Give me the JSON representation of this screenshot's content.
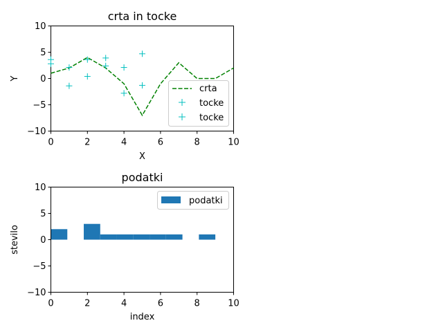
{
  "chart_data": [
    {
      "type": "line",
      "title": "crta in tocke",
      "xlabel": "X",
      "ylabel": "Y",
      "xlim": [
        0,
        10
      ],
      "ylim": [
        -10,
        10
      ],
      "xticks": [
        "0",
        "2",
        "4",
        "6",
        "8",
        "10"
      ],
      "yticks": [
        "10",
        "5",
        "0",
        "−5",
        "−10"
      ],
      "legend_placement": "lower-right",
      "series": [
        {
          "name": "crta",
          "style": "dashed-line",
          "color": "#008000",
          "x": [
            0,
            1,
            2,
            3,
            4,
            5,
            6,
            7,
            8,
            9,
            10
          ],
          "y": [
            1,
            2,
            4,
            2,
            -1,
            -7,
            -1,
            3,
            0,
            0,
            2
          ]
        },
        {
          "name": "tocke",
          "style": "plus-marker",
          "color": "#00bfbf",
          "x": [
            0,
            1,
            2,
            3,
            4,
            5
          ],
          "y": [
            3.6,
            2.1,
            3.6,
            3.9,
            2.1,
            4.7
          ]
        },
        {
          "name": "tocke",
          "style": "plus-marker",
          "color": "#00bfbf",
          "x": [
            0,
            1,
            2,
            3,
            4,
            5
          ],
          "y": [
            2.8,
            -1.4,
            0.4,
            2.4,
            -2.8,
            -1.3
          ]
        }
      ]
    },
    {
      "type": "bar",
      "title": "podatki",
      "xlabel": "index",
      "ylabel": "stevilo",
      "xlim": [
        0,
        10
      ],
      "ylim": [
        -10,
        10
      ],
      "xticks": [
        "0",
        "2",
        "4",
        "6",
        "8",
        "10"
      ],
      "yticks": [
        "10",
        "5",
        "0",
        "−5",
        "−10"
      ],
      "legend_placement": "upper-right",
      "bar_width": 0.9,
      "series": [
        {
          "name": "podatki",
          "color": "#1f77b4",
          "x_start": [
            0,
            0.9,
            1.8,
            2.7,
            3.6,
            4.5,
            5.4,
            6.3,
            7.2,
            8.1
          ],
          "values": [
            2,
            0,
            3,
            1,
            1,
            1,
            1,
            1,
            0,
            1
          ]
        }
      ]
    }
  ]
}
